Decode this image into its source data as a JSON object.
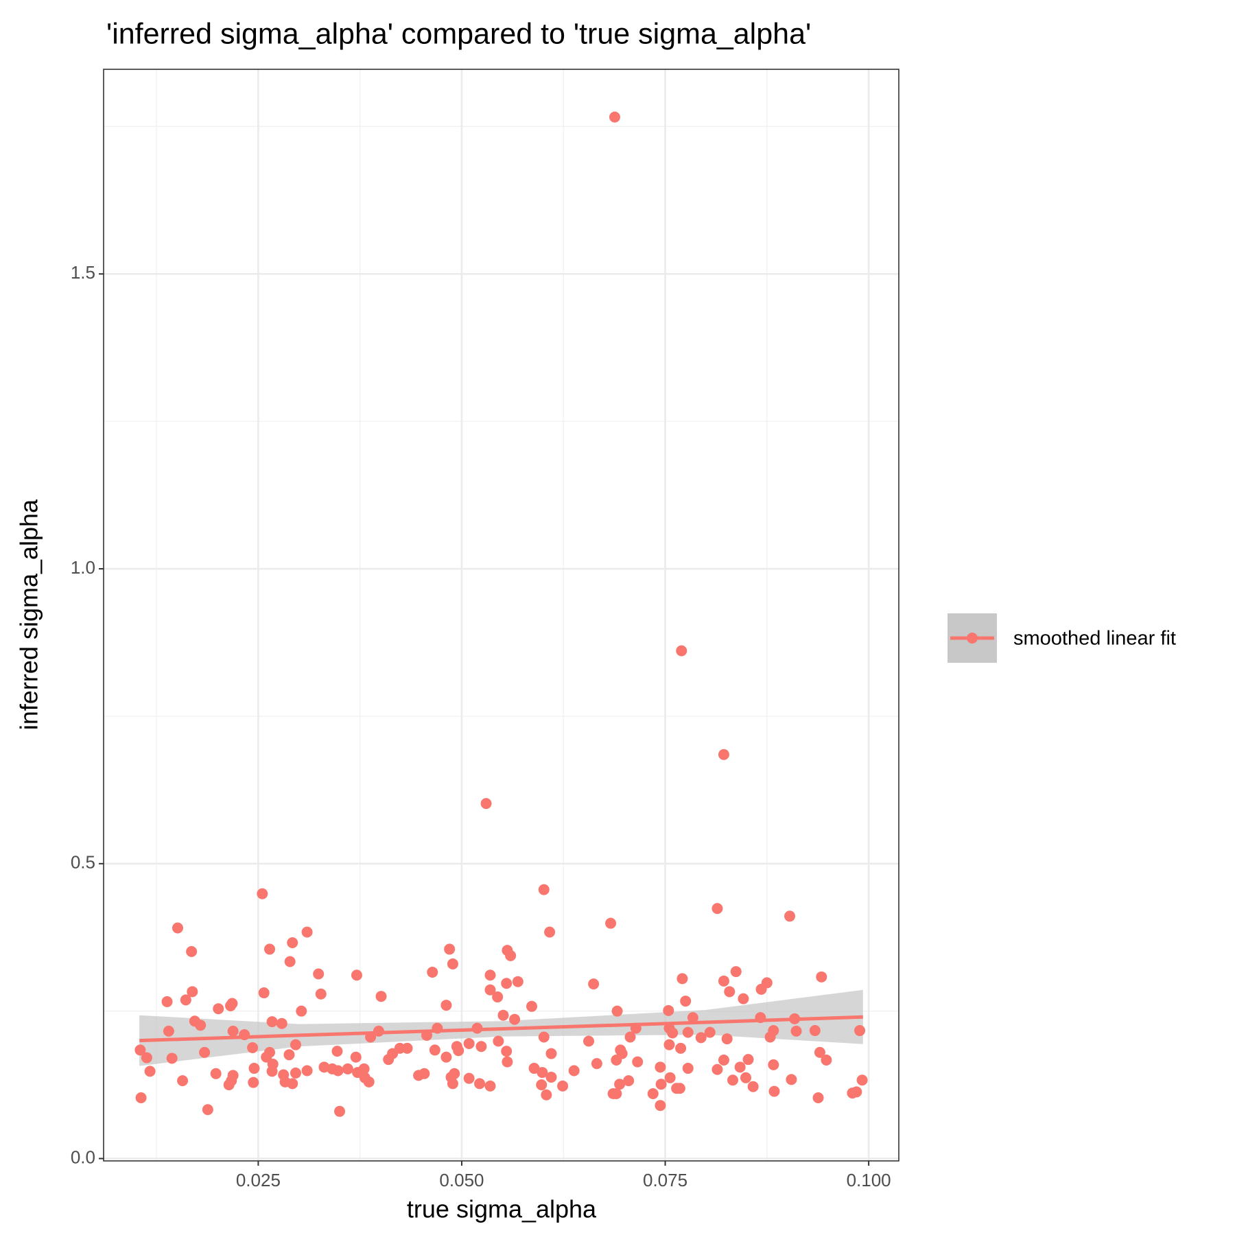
{
  "chart_data": {
    "type": "scatter",
    "title": "'inferred sigma_alpha' compared to 'true sigma_alpha'",
    "x_label": "true sigma_alpha",
    "y_label": "inferred sigma_alpha",
    "color": "#F8766D",
    "x": [
      0.0105,
      0.0106,
      0.0113,
      0.0117,
      0.0138,
      0.014,
      0.0144,
      0.0151,
      0.0157,
      0.0161,
      0.0168,
      0.0169,
      0.0172,
      0.0179,
      0.0184,
      0.0188,
      0.0198,
      0.0201,
      0.0214,
      0.0216,
      0.0218,
      0.0219,
      0.0219,
      0.0217,
      0.0233,
      0.0243,
      0.0244,
      0.0245,
      0.0255,
      0.0257,
      0.026,
      0.0264,
      0.0264,
      0.0267,
      0.0267,
      0.0268,
      0.0279,
      0.0281,
      0.0283,
      0.0288,
      0.0289,
      0.0292,
      0.0292,
      0.0296,
      0.0296,
      0.0303,
      0.031,
      0.031,
      0.0324,
      0.0327,
      0.0331,
      0.0341,
      0.0347,
      0.0348,
      0.035,
      0.036,
      0.037,
      0.0371,
      0.0372,
      0.038,
      0.0381,
      0.0386,
      0.0388,
      0.0398,
      0.0401,
      0.041,
      0.0415,
      0.0424,
      0.0433,
      0.0447,
      0.0454,
      0.0457,
      0.0464,
      0.0467,
      0.047,
      0.0481,
      0.0481,
      0.0485,
      0.0487,
      0.0489,
      0.0489,
      0.0491,
      0.0494,
      0.0496,
      0.0509,
      0.0509,
      0.0519,
      0.0522,
      0.0524,
      0.053,
      0.0535,
      0.0535,
      0.0535,
      0.0544,
      0.0545,
      0.0551,
      0.0555,
      0.0555,
      0.0556,
      0.0556,
      0.056,
      0.0565,
      0.0569,
      0.0586,
      0.0589,
      0.0598,
      0.0599,
      0.0601,
      0.0601,
      0.0604,
      0.0608,
      0.061,
      0.061,
      0.0624,
      0.0638,
      0.0656,
      0.0662,
      0.0666,
      0.0683,
      0.0686,
      0.0688,
      0.069,
      0.069,
      0.0691,
      0.0694,
      0.0695,
      0.0697,
      0.0705,
      0.0707,
      0.0714,
      0.0716,
      0.0735,
      0.0744,
      0.0744,
      0.0745,
      0.0754,
      0.0755,
      0.0755,
      0.0756,
      0.0759,
      0.0764,
      0.0768,
      0.0769,
      0.077,
      0.0771,
      0.0775,
      0.0778,
      0.0778,
      0.0784,
      0.0794,
      0.0805,
      0.0814,
      0.0814,
      0.0822,
      0.0822,
      0.0822,
      0.0826,
      0.0829,
      0.0833,
      0.0837,
      0.0842,
      0.0846,
      0.0849,
      0.0852,
      0.0858,
      0.0867,
      0.0868,
      0.0875,
      0.0879,
      0.0883,
      0.0883,
      0.0884,
      0.0903,
      0.0905,
      0.0909,
      0.0911,
      0.0934,
      0.0938,
      0.094,
      0.0942,
      0.0948,
      0.098,
      0.0985,
      0.0989,
      0.0992
    ],
    "y": [
      0.184,
      0.103,
      0.171,
      0.148,
      0.266,
      0.216,
      0.17,
      0.391,
      0.132,
      0.269,
      0.351,
      0.283,
      0.233,
      0.226,
      0.18,
      0.083,
      0.144,
      0.254,
      0.125,
      0.259,
      0.263,
      0.216,
      0.141,
      0.132,
      0.21,
      0.188,
      0.129,
      0.153,
      0.449,
      0.281,
      0.172,
      0.355,
      0.18,
      0.232,
      0.148,
      0.16,
      0.229,
      0.142,
      0.13,
      0.176,
      0.334,
      0.366,
      0.127,
      0.193,
      0.145,
      0.25,
      0.149,
      0.384,
      0.313,
      0.279,
      0.155,
      0.152,
      0.182,
      0.149,
      0.08,
      0.152,
      0.172,
      0.311,
      0.146,
      0.152,
      0.137,
      0.13,
      0.206,
      0.216,
      0.275,
      0.168,
      0.178,
      0.187,
      0.187,
      0.141,
      0.144,
      0.209,
      0.316,
      0.184,
      0.221,
      0.26,
      0.172,
      0.355,
      0.138,
      0.127,
      0.33,
      0.144,
      0.19,
      0.183,
      0.136,
      0.195,
      0.221,
      0.127,
      0.19,
      0.602,
      0.123,
      0.311,
      0.286,
      0.274,
      0.199,
      0.243,
      0.182,
      0.297,
      0.164,
      0.353,
      0.344,
      0.236,
      0.3,
      0.258,
      0.153,
      0.125,
      0.146,
      0.456,
      0.206,
      0.108,
      0.384,
      0.178,
      0.138,
      0.123,
      0.149,
      0.199,
      0.296,
      0.161,
      0.399,
      0.11,
      1.766,
      0.11,
      0.167,
      0.25,
      0.126,
      0.184,
      0.178,
      0.132,
      0.206,
      0.221,
      0.164,
      0.11,
      0.09,
      0.155,
      0.126,
      0.251,
      0.221,
      0.193,
      0.137,
      0.213,
      0.119,
      0.119,
      0.187,
      0.861,
      0.305,
      0.267,
      0.214,
      0.153,
      0.239,
      0.205,
      0.214,
      0.424,
      0.151,
      0.685,
      0.301,
      0.167,
      0.203,
      0.283,
      0.133,
      0.317,
      0.155,
      0.271,
      0.137,
      0.168,
      0.122,
      0.239,
      0.287,
      0.298,
      0.206,
      0.217,
      0.159,
      0.114,
      0.411,
      0.134,
      0.237,
      0.216,
      0.217,
      0.103,
      0.18,
      0.308,
      0.167,
      0.111,
      0.113,
      0.217,
      0.133
    ],
    "fit": {
      "name": "smoothed linear fit",
      "color": "#F8766D",
      "band_color": "#c8c8c8",
      "x": [
        0.0104,
        0.03,
        0.055,
        0.08,
        0.0993
      ],
      "values": [
        0.2,
        0.209,
        0.22,
        0.231,
        0.24
      ],
      "lower": [
        0.157,
        0.19,
        0.207,
        0.21,
        0.194
      ],
      "upper": [
        0.243,
        0.228,
        0.233,
        0.252,
        0.286
      ]
    },
    "xlim": [
      0.006,
      0.1037
    ],
    "ylim": [
      -0.004,
      1.847
    ],
    "xticks": [
      0.025,
      {
        "value": 0.05,
        "label": "0.050"
      },
      0.075,
      {
        "value": 0.1,
        "label": "0.100"
      }
    ],
    "yticks": [
      {
        "value": 0,
        "label": "0.0"
      },
      0.5,
      {
        "value": 1,
        "label": "1.0"
      },
      1.5
    ],
    "minor_xticks": [
      0.0125,
      0.0375,
      0.0625,
      0.0875
    ],
    "minor_yticks": [
      0.25,
      0.75,
      1.25,
      1.75
    ],
    "grid": true,
    "legend": "right"
  }
}
